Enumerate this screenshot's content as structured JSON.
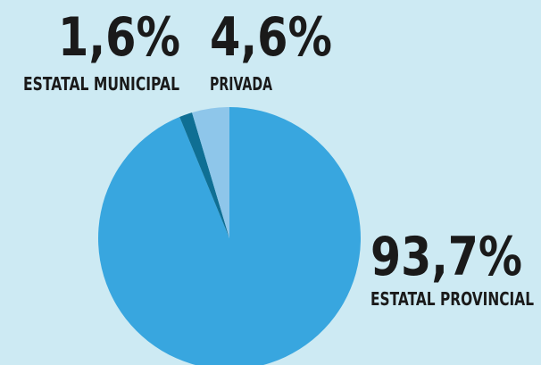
{
  "chart_data": {
    "type": "pie",
    "categories": [
      "ESTATAL PROVINCIAL",
      "ESTATAL MUNICIPAL",
      "PRIVADA"
    ],
    "values": [
      93.7,
      1.6,
      4.6
    ],
    "value_labels": [
      "93,7%",
      "1,6%",
      "4,6%"
    ],
    "colors": [
      "#38a6df",
      "#0f6f94",
      "#8ec6ea"
    ]
  }
}
